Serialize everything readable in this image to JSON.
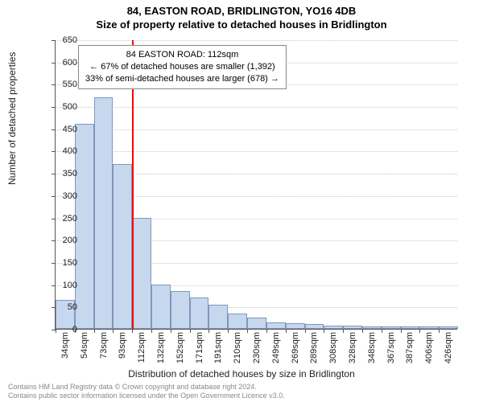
{
  "title_line1": "84, EASTON ROAD, BRIDLINGTON, YO16 4DB",
  "title_line2": "Size of property relative to detached houses in Bridlington",
  "y_axis_label": "Number of detached properties",
  "x_axis_label": "Distribution of detached houses by size in Bridlington",
  "chart": {
    "type": "histogram",
    "background_color": "#ffffff",
    "grid_color": "#c8c8c8",
    "bar_fill": "#c7d7ee",
    "bar_border": "#7f97bb",
    "ref_color": "#ff0000",
    "y_min": 0,
    "y_max": 650,
    "y_ticks": [
      0,
      50,
      100,
      150,
      200,
      250,
      300,
      350,
      400,
      450,
      500,
      550,
      600,
      650
    ],
    "x_labels": [
      "34sqm",
      "54sqm",
      "73sqm",
      "93sqm",
      "112sqm",
      "132sqm",
      "152sqm",
      "171sqm",
      "191sqm",
      "210sqm",
      "230sqm",
      "249sqm",
      "269sqm",
      "289sqm",
      "308sqm",
      "328sqm",
      "348sqm",
      "367sqm",
      "387sqm",
      "406sqm",
      "426sqm"
    ],
    "values": [
      65,
      460,
      520,
      370,
      250,
      100,
      85,
      70,
      55,
      35,
      25,
      15,
      12,
      10,
      8,
      8,
      6,
      5,
      6,
      5,
      5
    ],
    "ref_index": 4,
    "annotation": {
      "line1": "84 EASTON ROAD: 112sqm",
      "line2": "← 67% of detached houses are smaller (1,392)",
      "line3": "33% of semi-detached houses are larger (678) →"
    }
  },
  "footer_line1": "Contains HM Land Registry data © Crown copyright and database right 2024.",
  "footer_line2": "Contains public sector information licensed under the Open Government Licence v3.0."
}
